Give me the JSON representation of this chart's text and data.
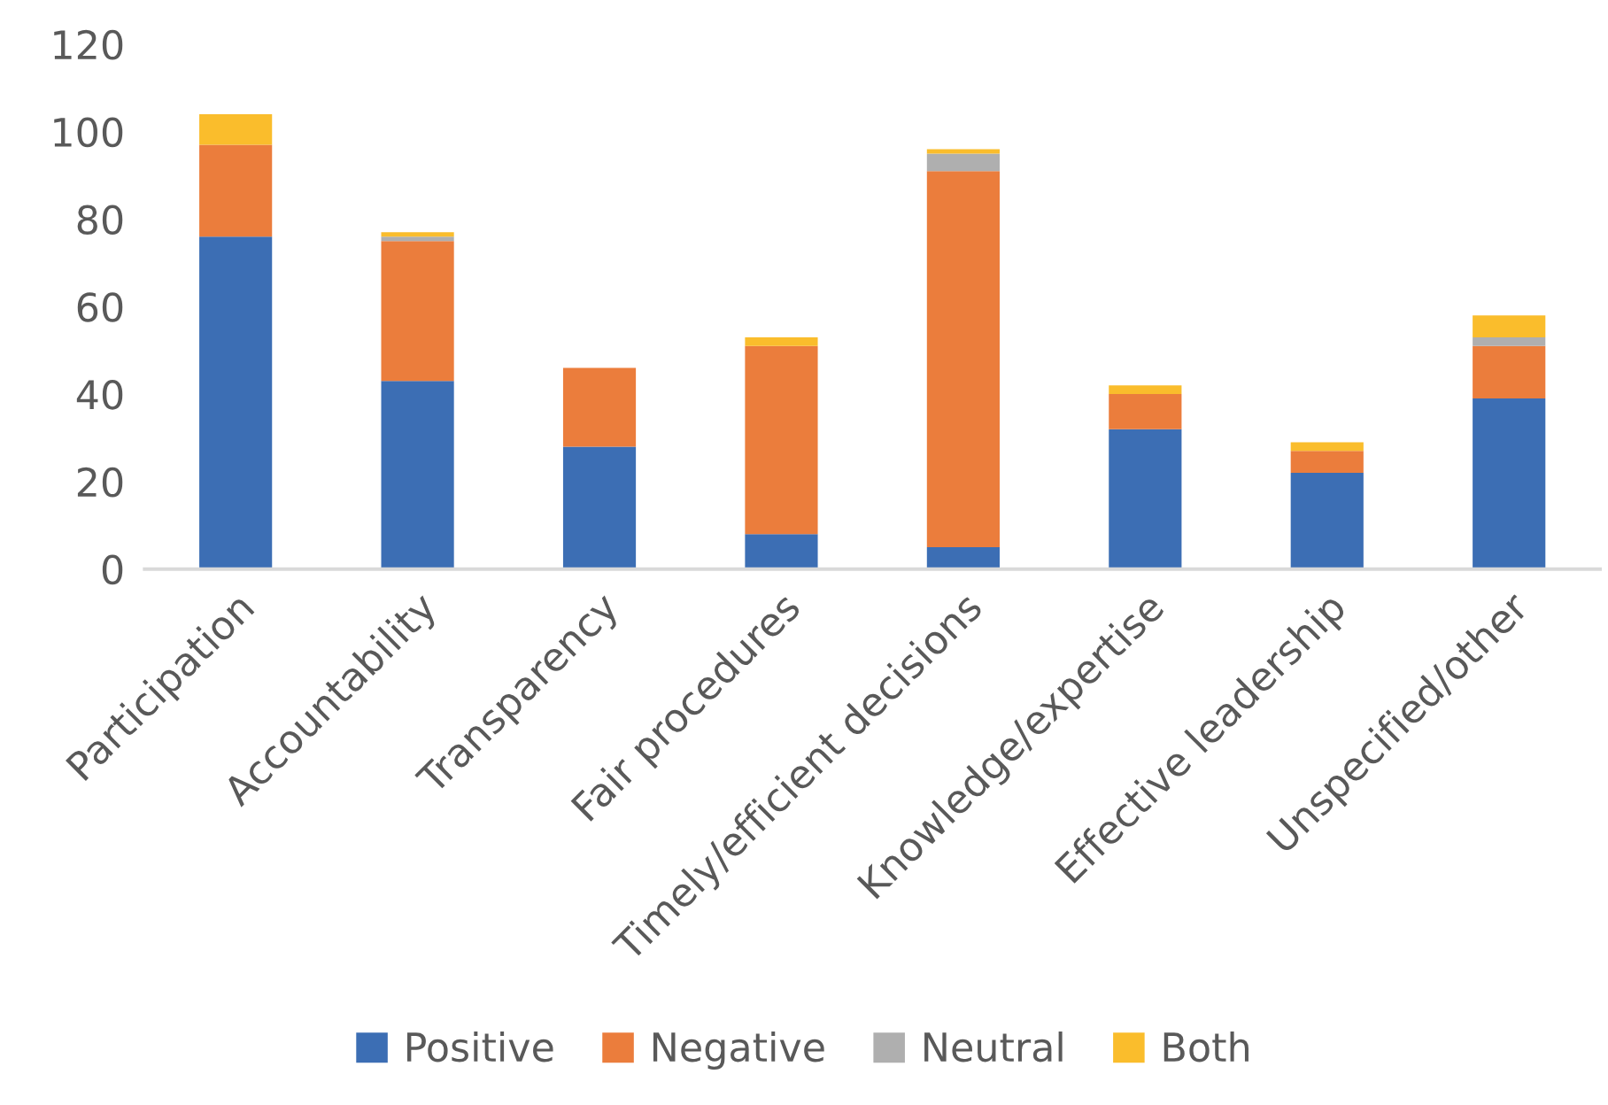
{
  "chart_data": {
    "type": "bar",
    "stacked": true,
    "categories": [
      "Participation",
      "Accountability",
      "Transparency",
      "Fair procedures",
      "Timely/efficient decisions",
      "Knowledge/expertise",
      "Effective leadership",
      "Unspecified/other"
    ],
    "series": [
      {
        "name": "Positive",
        "color": "#3c6eb4",
        "values": [
          76,
          43,
          28,
          8,
          5,
          32,
          22,
          39
        ]
      },
      {
        "name": "Negative",
        "color": "#eb7d3c",
        "values": [
          21,
          32,
          18,
          43,
          86,
          8,
          5,
          12
        ]
      },
      {
        "name": "Neutral",
        "color": "#afafaf",
        "values": [
          0,
          1,
          0,
          0,
          4,
          0,
          0,
          2
        ]
      },
      {
        "name": "Both",
        "color": "#fabd2c",
        "values": [
          7,
          1,
          0,
          2,
          1,
          2,
          2,
          5
        ]
      }
    ],
    "ylim": [
      0,
      120
    ],
    "yticks": [
      0,
      20,
      40,
      60,
      80,
      100,
      120
    ],
    "grid": false,
    "legend": "bottom"
  }
}
